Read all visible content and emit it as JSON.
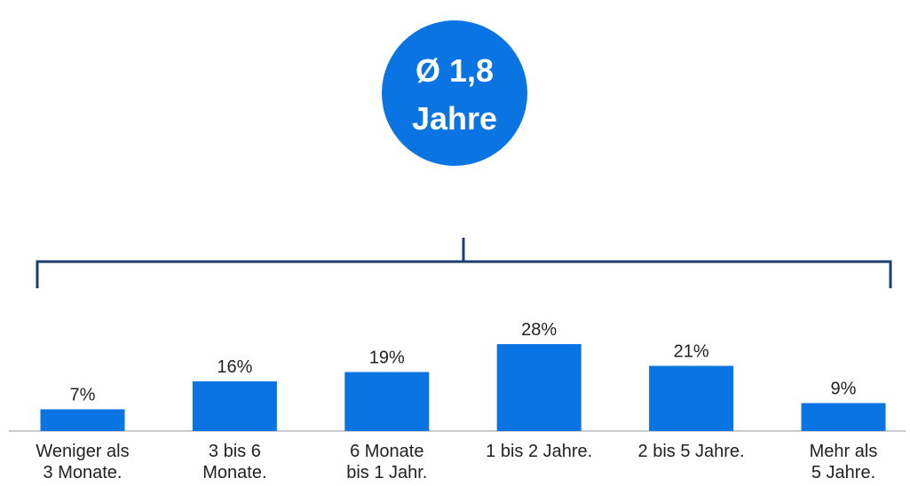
{
  "chart_data": {
    "type": "bar",
    "annotation": [
      "Ø 1,8",
      "Jahre"
    ],
    "categories": [
      [
        "Weniger als",
        "3 Monate."
      ],
      [
        "3 bis 6",
        "Monate."
      ],
      [
        "6 Monate",
        "bis 1 Jahr."
      ],
      [
        "1 bis 2 Jahre."
      ],
      [
        "2 bis 5 Jahre."
      ],
      [
        "Mehr als",
        "5 Jahre."
      ]
    ],
    "values": [
      7,
      16,
      19,
      28,
      21,
      9
    ],
    "value_labels": [
      "7%",
      "16%",
      "19%",
      "28%",
      "21%",
      "9%"
    ],
    "color": "#0a74e2"
  }
}
